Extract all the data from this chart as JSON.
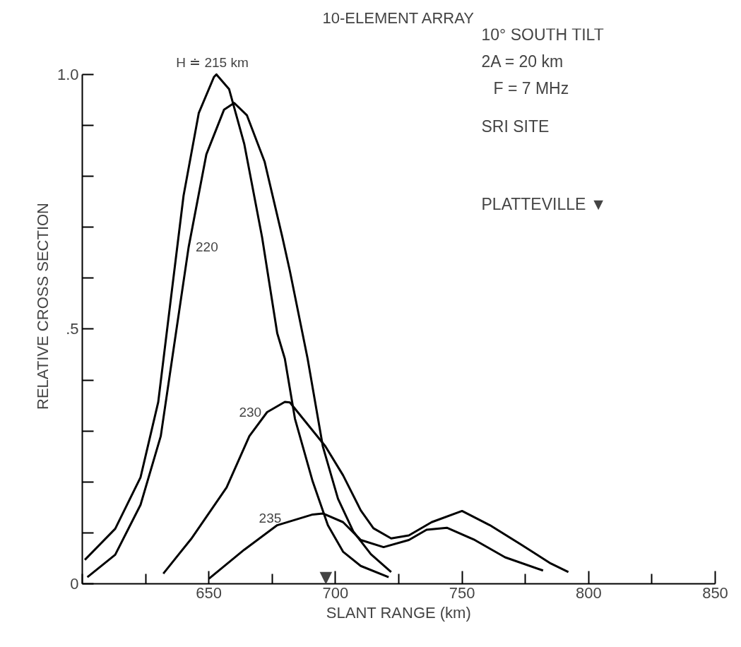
{
  "chart_data": {
    "type": "line",
    "title": "10-ELEMENT ARRAY",
    "xlabel": "SLANT RANGE (km)",
    "ylabel": "RELATIVE CROSS SECTION",
    "xlim": [
      600,
      850
    ],
    "ylim": [
      0,
      1.0
    ],
    "xticks": [
      {
        "value": 600,
        "label": null
      },
      {
        "value": 625,
        "label": null
      },
      650,
      {
        "value": 675,
        "label": null
      },
      700,
      {
        "value": 725,
        "label": null
      },
      750,
      {
        "value": 775,
        "label": null
      },
      800,
      {
        "value": 825,
        "label": null
      },
      850
    ],
    "yticks": [
      0,
      {
        "value": 0.1,
        "label": null
      },
      {
        "value": 0.2,
        "label": null
      },
      {
        "value": 0.3,
        "label": null
      },
      {
        "value": 0.4,
        "label": null
      },
      {
        "value": 0.5,
        "label": ".5"
      },
      {
        "value": 0.6,
        "label": null
      },
      {
        "value": 0.7,
        "label": null
      },
      {
        "value": 0.8,
        "label": null
      },
      {
        "value": 0.9,
        "label": null
      },
      {
        "value": 1.0,
        "label": "1.0"
      }
    ],
    "grid": false,
    "legend": false,
    "marker": "none",
    "line_style": "solid",
    "series": [
      {
        "name": "H ≐ 215 km",
        "color": "#000000",
        "x": [
          601,
          613,
          623,
          630,
          635,
          640,
          646,
          652,
          653,
          658,
          664,
          671,
          677,
          680,
          684,
          691,
          697,
          703,
          710,
          721
        ],
        "values": [
          0.047,
          0.108,
          0.209,
          0.357,
          0.56,
          0.762,
          0.924,
          0.995,
          1.0,
          0.971,
          0.863,
          0.681,
          0.492,
          0.442,
          0.324,
          0.201,
          0.115,
          0.063,
          0.035,
          0.013
        ]
      },
      {
        "name": "220",
        "color": "#000000",
        "x": [
          602,
          613,
          623,
          631,
          636,
          642,
          649,
          656,
          660,
          665,
          672,
          679,
          682,
          689,
          695,
          701,
          707,
          714,
          722
        ],
        "values": [
          0.013,
          0.057,
          0.155,
          0.29,
          0.459,
          0.661,
          0.843,
          0.931,
          0.944,
          0.92,
          0.829,
          0.681,
          0.614,
          0.442,
          0.27,
          0.167,
          0.103,
          0.058,
          0.023
        ]
      },
      {
        "name": "230",
        "color": "#000000",
        "x": [
          632,
          643,
          657,
          666,
          673,
          680,
          682,
          696,
          703,
          710,
          715,
          722,
          729,
          738,
          750,
          761,
          773,
          785,
          792
        ],
        "values": [
          0.02,
          0.088,
          0.189,
          0.29,
          0.337,
          0.357,
          0.356,
          0.27,
          0.213,
          0.144,
          0.109,
          0.089,
          0.095,
          0.121,
          0.143,
          0.115,
          0.078,
          0.04,
          0.023
        ]
      },
      {
        "name": "235",
        "color": "#000000",
        "x": [
          650,
          664,
          677,
          691,
          695,
          703,
          710,
          719,
          729,
          736,
          744,
          755,
          767,
          782
        ],
        "values": [
          0.01,
          0.067,
          0.115,
          0.136,
          0.138,
          0.121,
          0.086,
          0.072,
          0.086,
          0.106,
          0.11,
          0.086,
          0.052,
          0.026
        ]
      }
    ],
    "annotations": [
      "10° SOUTH TILT",
      "2A = 20 km",
      "F = 7 MHz",
      "SRI SITE",
      "PLATTEVILLE ▼",
      "▼"
    ]
  }
}
